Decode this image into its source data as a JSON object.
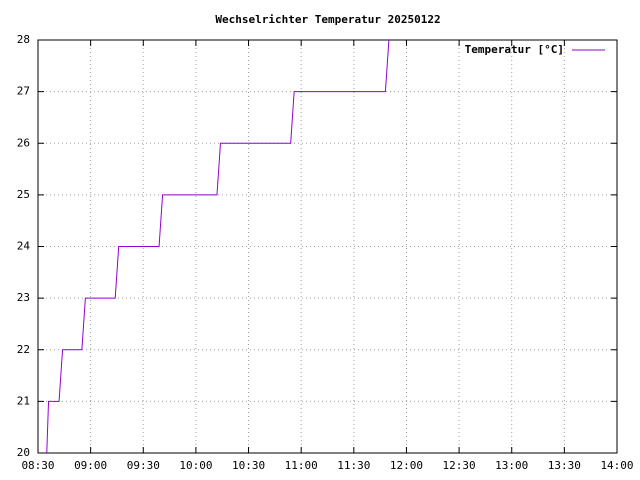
{
  "chart_data": {
    "type": "line",
    "title": "Wechselrichter Temperatur 20250122",
    "x": [
      515,
      516,
      522,
      524,
      535,
      537,
      554,
      556,
      579,
      581,
      612,
      614,
      654,
      656,
      708,
      710
    ],
    "series": [
      {
        "name": "Temperatur [°C]",
        "color": "#9400d3",
        "values": [
          20,
          21,
          21,
          22,
          22,
          23,
          23,
          24,
          24,
          25,
          25,
          26,
          26,
          27,
          27,
          28
        ]
      }
    ],
    "xlim": [
      510,
      840
    ],
    "xticks": [
      {
        "value": 510,
        "label": "08:30"
      },
      {
        "value": 540,
        "label": "09:00"
      },
      {
        "value": 570,
        "label": "09:30"
      },
      {
        "value": 600,
        "label": "10:00"
      },
      {
        "value": 630,
        "label": "10:30"
      },
      {
        "value": 660,
        "label": "11:00"
      },
      {
        "value": 690,
        "label": "11:30"
      },
      {
        "value": 720,
        "label": "12:00"
      },
      {
        "value": 750,
        "label": "12:30"
      },
      {
        "value": 780,
        "label": "13:00"
      },
      {
        "value": 810,
        "label": "13:30"
      },
      {
        "value": 840,
        "label": "14:00"
      }
    ],
    "ylim": [
      20,
      28
    ],
    "yticks": [
      20,
      21,
      22,
      23,
      24,
      25,
      26,
      27,
      28
    ],
    "grid": true,
    "legend": "top-right"
  }
}
